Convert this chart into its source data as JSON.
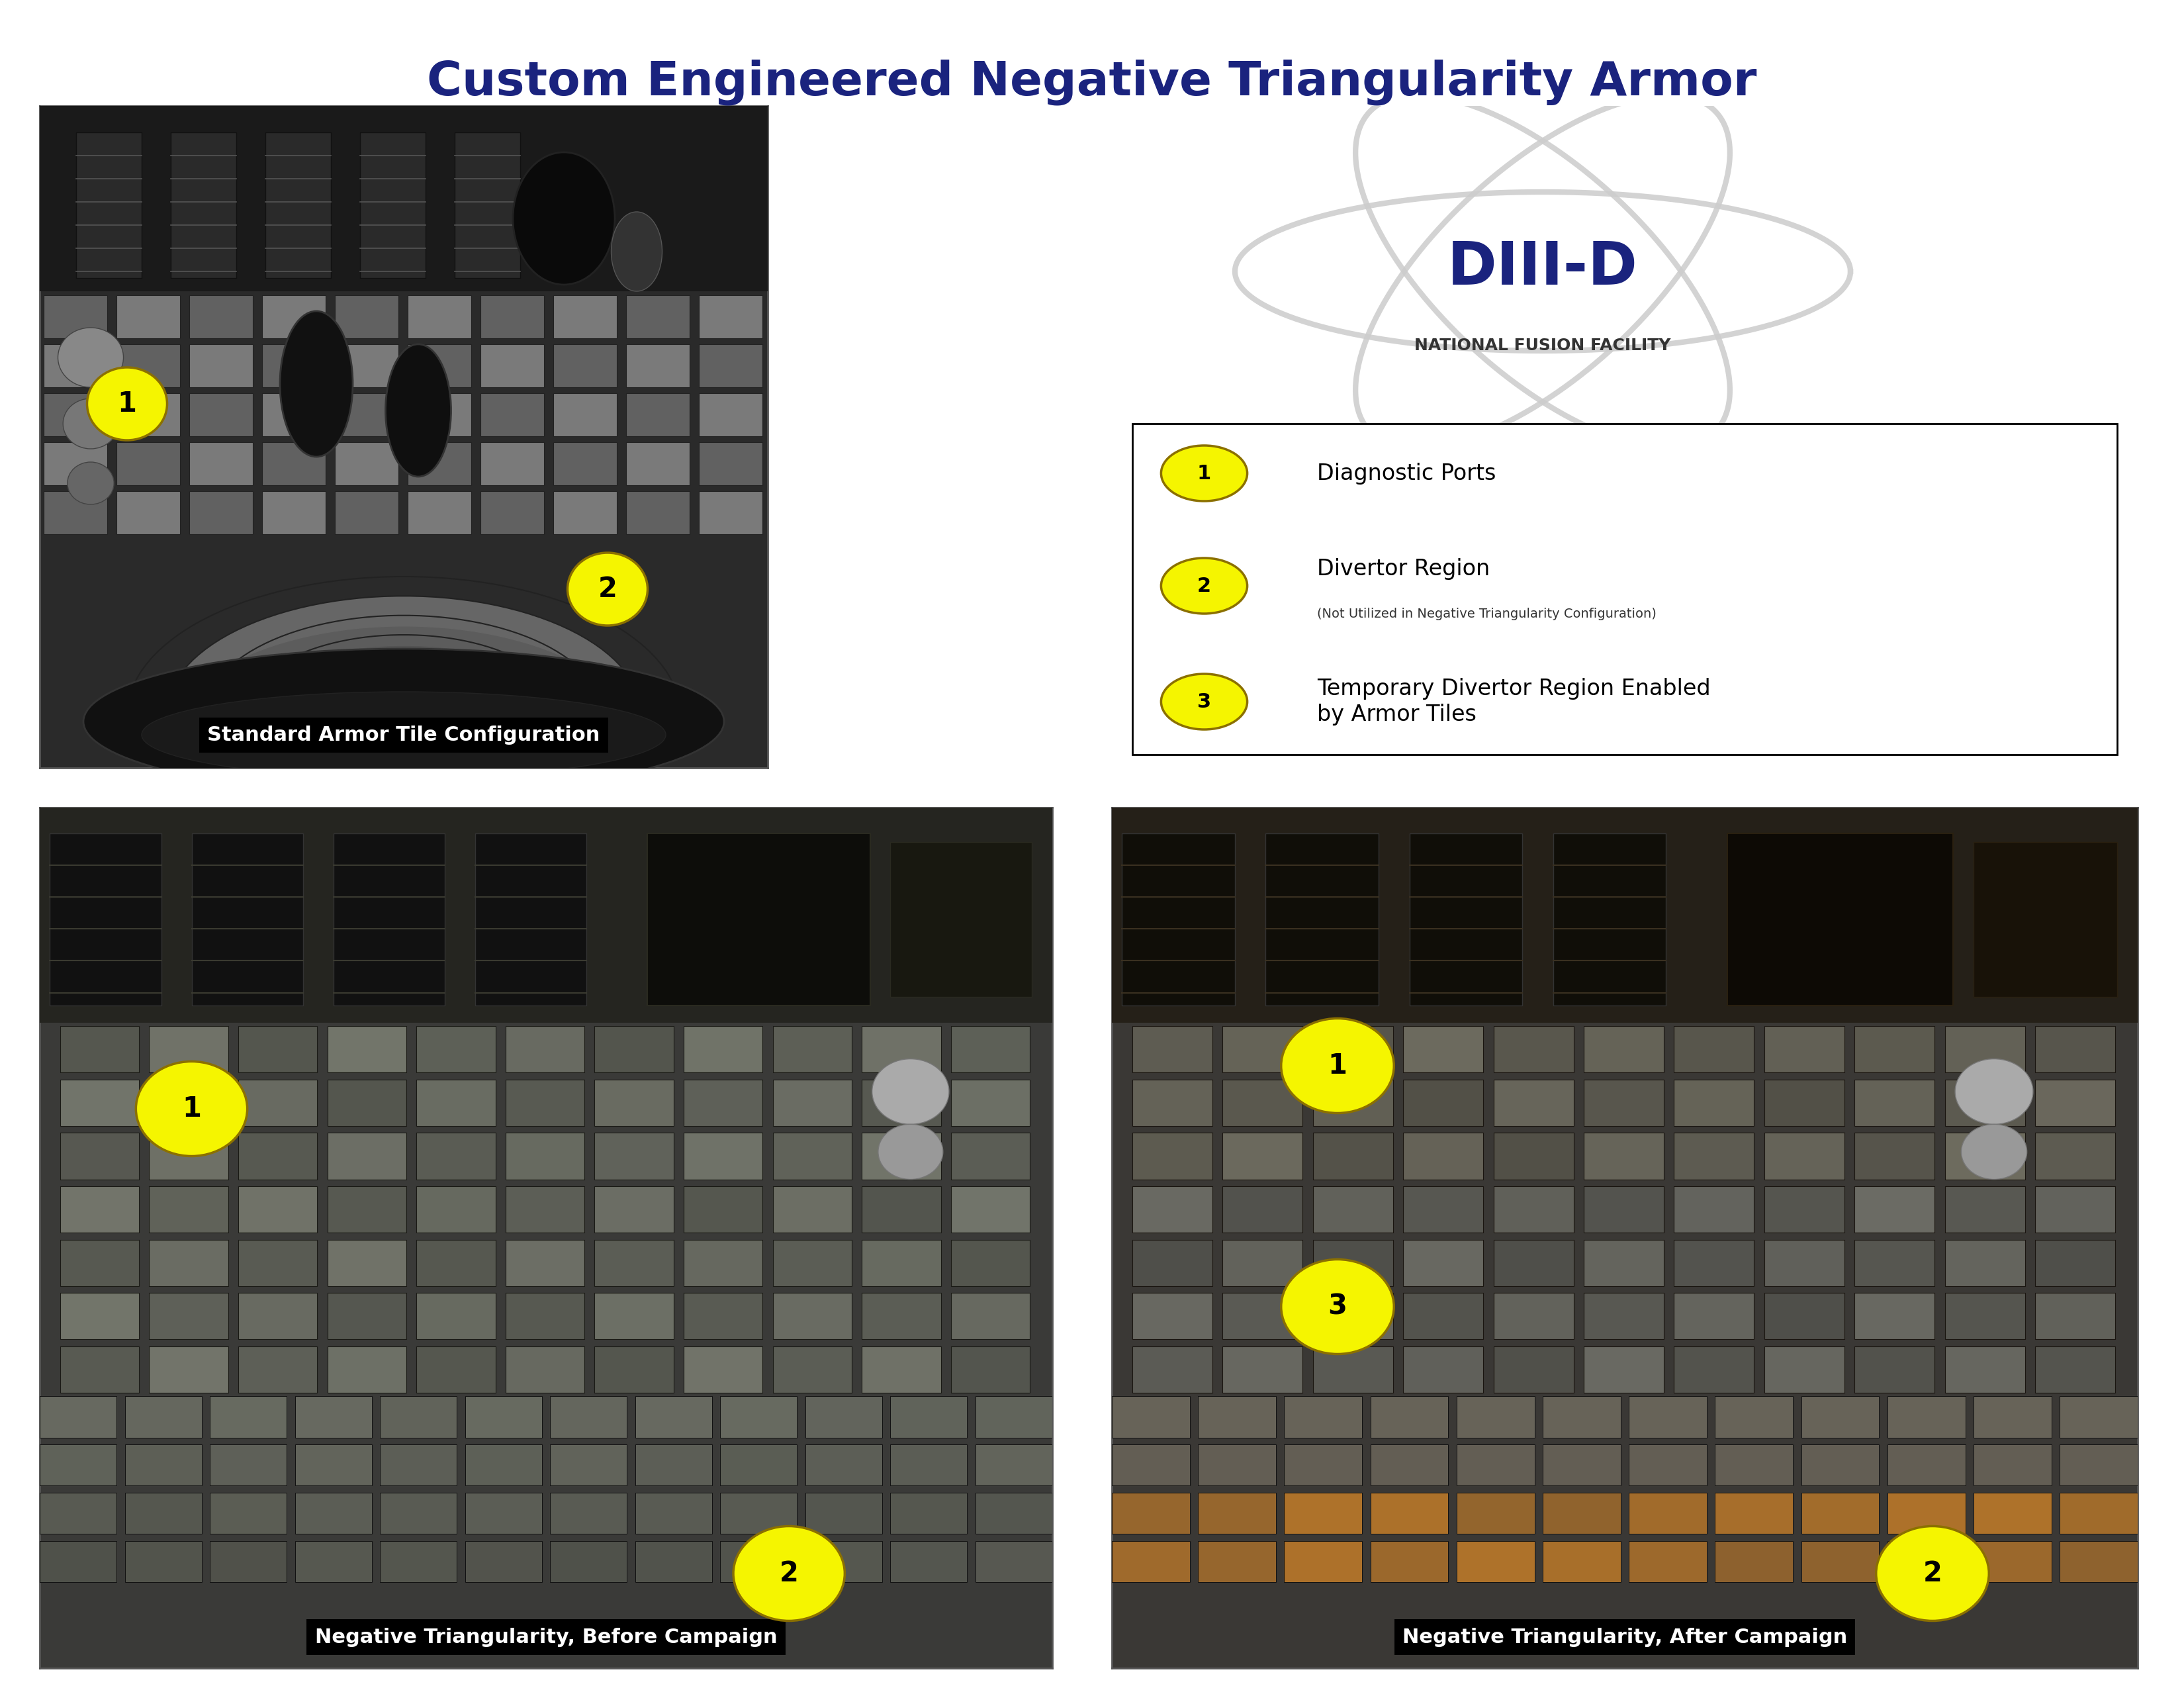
{
  "title": "Custom Engineered Negative Triangularity Armor",
  "title_color": "#1a237e",
  "title_fontsize": 52,
  "background_color": "#ffffff",
  "legend_items": [
    {
      "number": "1",
      "text": "Diagnostic Ports",
      "subtext": ""
    },
    {
      "number": "2",
      "text": "Divertor Region",
      "subtext": "(Not Utilized in Negative Triangularity Configuration)"
    },
    {
      "number": "3",
      "text": "Temporary Divertor Region Enabled\nby Armor Tiles",
      "subtext": ""
    }
  ],
  "bullet_color": "#f5f500",
  "bullet_border": "#8B7000",
  "number_color": "#000000",
  "label_bg": "#000000",
  "label_text_color": "#ffffff",
  "label_fontsize": 22,
  "diii_d_text_color": "#1a237e",
  "nff_text_color": "#333333"
}
